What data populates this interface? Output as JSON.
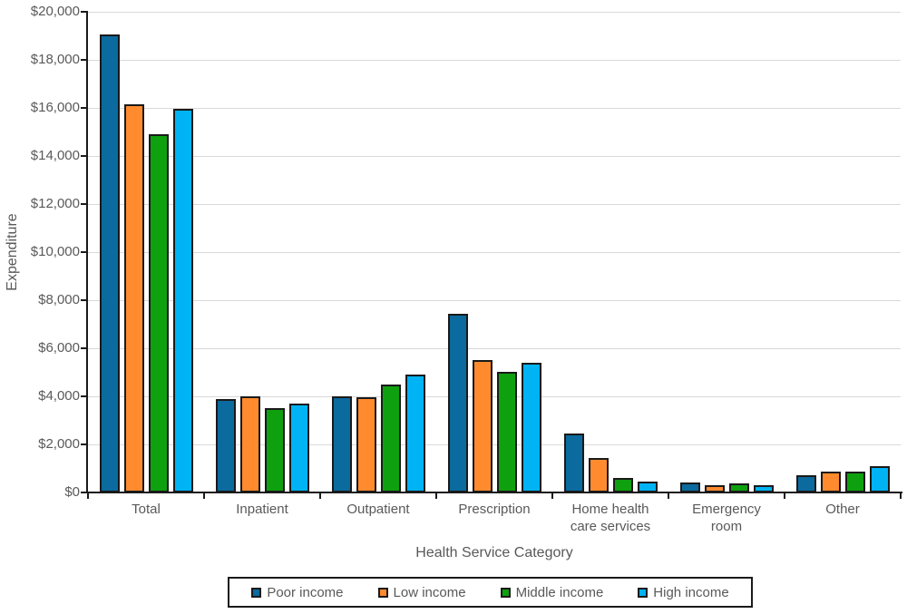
{
  "chart_data": {
    "type": "bar",
    "title": "",
    "xlabel": "Health Service Category",
    "ylabel": "Expenditure",
    "categories": [
      "Total",
      "Inpatient",
      "Outpatient",
      "Prescription",
      "Home health\ncare services",
      "Emergency\nroom",
      "Other"
    ],
    "series": [
      {
        "name": "Poor income",
        "color": "#0B6A9E",
        "values": [
          19050,
          3900,
          4000,
          7450,
          2450,
          400,
          725
        ]
      },
      {
        "name": "Low income",
        "color": "#FF8B2E",
        "values": [
          16150,
          4000,
          3950,
          5500,
          1450,
          320,
          875
        ]
      },
      {
        "name": "Middle income",
        "color": "#0FA00F",
        "values": [
          14900,
          3500,
          4500,
          5000,
          600,
          380,
          850
        ]
      },
      {
        "name": "High income",
        "color": "#00B3F4",
        "values": [
          15950,
          3700,
          4900,
          5400,
          450,
          300,
          1100
        ]
      }
    ],
    "ylim": [
      0,
      20000
    ],
    "ytick_step": 2000,
    "ytick_labels": [
      "$0",
      "$2,000",
      "$4,000",
      "$6,000",
      "$8,000",
      "$10,000",
      "$12,000",
      "$14,000",
      "$16,000",
      "$18,000",
      "$20,000"
    ],
    "grid": true,
    "legend_position": "bottom"
  },
  "styles": {
    "text_color": "#595959",
    "gridline_color": "#D9D9D9",
    "axis_color": "#1A1A1A",
    "background_color": "#FFFFFF"
  }
}
